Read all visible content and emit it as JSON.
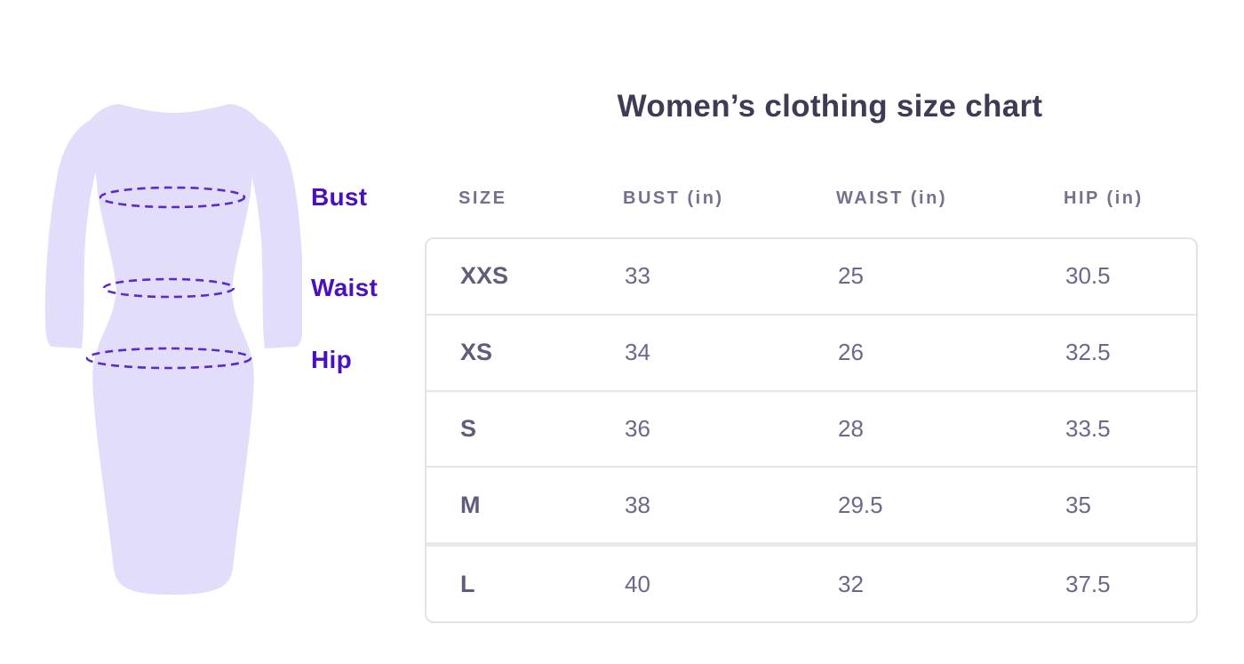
{
  "title": "Women’s clothing size chart",
  "colors": {
    "title_text": "#3e3c55",
    "header_text": "#74718f",
    "size_text": "#5f5c7c",
    "value_text": "#6b6889",
    "label_purple": "#4a10bd",
    "dash_purple": "#5b2bc7",
    "dress_fill": "#e2ddfb",
    "card_border": "#e3e3e3"
  },
  "illustration": {
    "description": "dress silhouette with dashed measurement ellipses",
    "labels": [
      {
        "text": "Bust"
      },
      {
        "text": "Waist"
      },
      {
        "text": "Hip"
      }
    ]
  },
  "table": {
    "columns": [
      "SIZE",
      "BUST (in)",
      "WAIST (in)",
      "HIP (in)"
    ],
    "rows": [
      [
        "XXS",
        "33",
        "25",
        "30.5"
      ],
      [
        "XS",
        "34",
        "26",
        "32.5"
      ],
      [
        "S",
        "36",
        "28",
        "33.5"
      ],
      [
        "M",
        "38",
        "29.5",
        "35"
      ],
      [
        "L",
        "40",
        "32",
        "37.5"
      ]
    ]
  },
  "chart_data": {
    "type": "table",
    "title": "Women’s clothing size chart",
    "columns": [
      "SIZE",
      "BUST (in)",
      "WAIST (in)",
      "HIP (in)"
    ],
    "rows": [
      {
        "size": "XXS",
        "bust_in": 33,
        "waist_in": 25,
        "hip_in": 30.5
      },
      {
        "size": "XS",
        "bust_in": 34,
        "waist_in": 26,
        "hip_in": 32.5
      },
      {
        "size": "S",
        "bust_in": 36,
        "waist_in": 28,
        "hip_in": 33.5
      },
      {
        "size": "M",
        "bust_in": 38,
        "waist_in": 29.5,
        "hip_in": 35
      },
      {
        "size": "L",
        "bust_in": 40,
        "waist_in": 32,
        "hip_in": 37.5
      }
    ]
  }
}
